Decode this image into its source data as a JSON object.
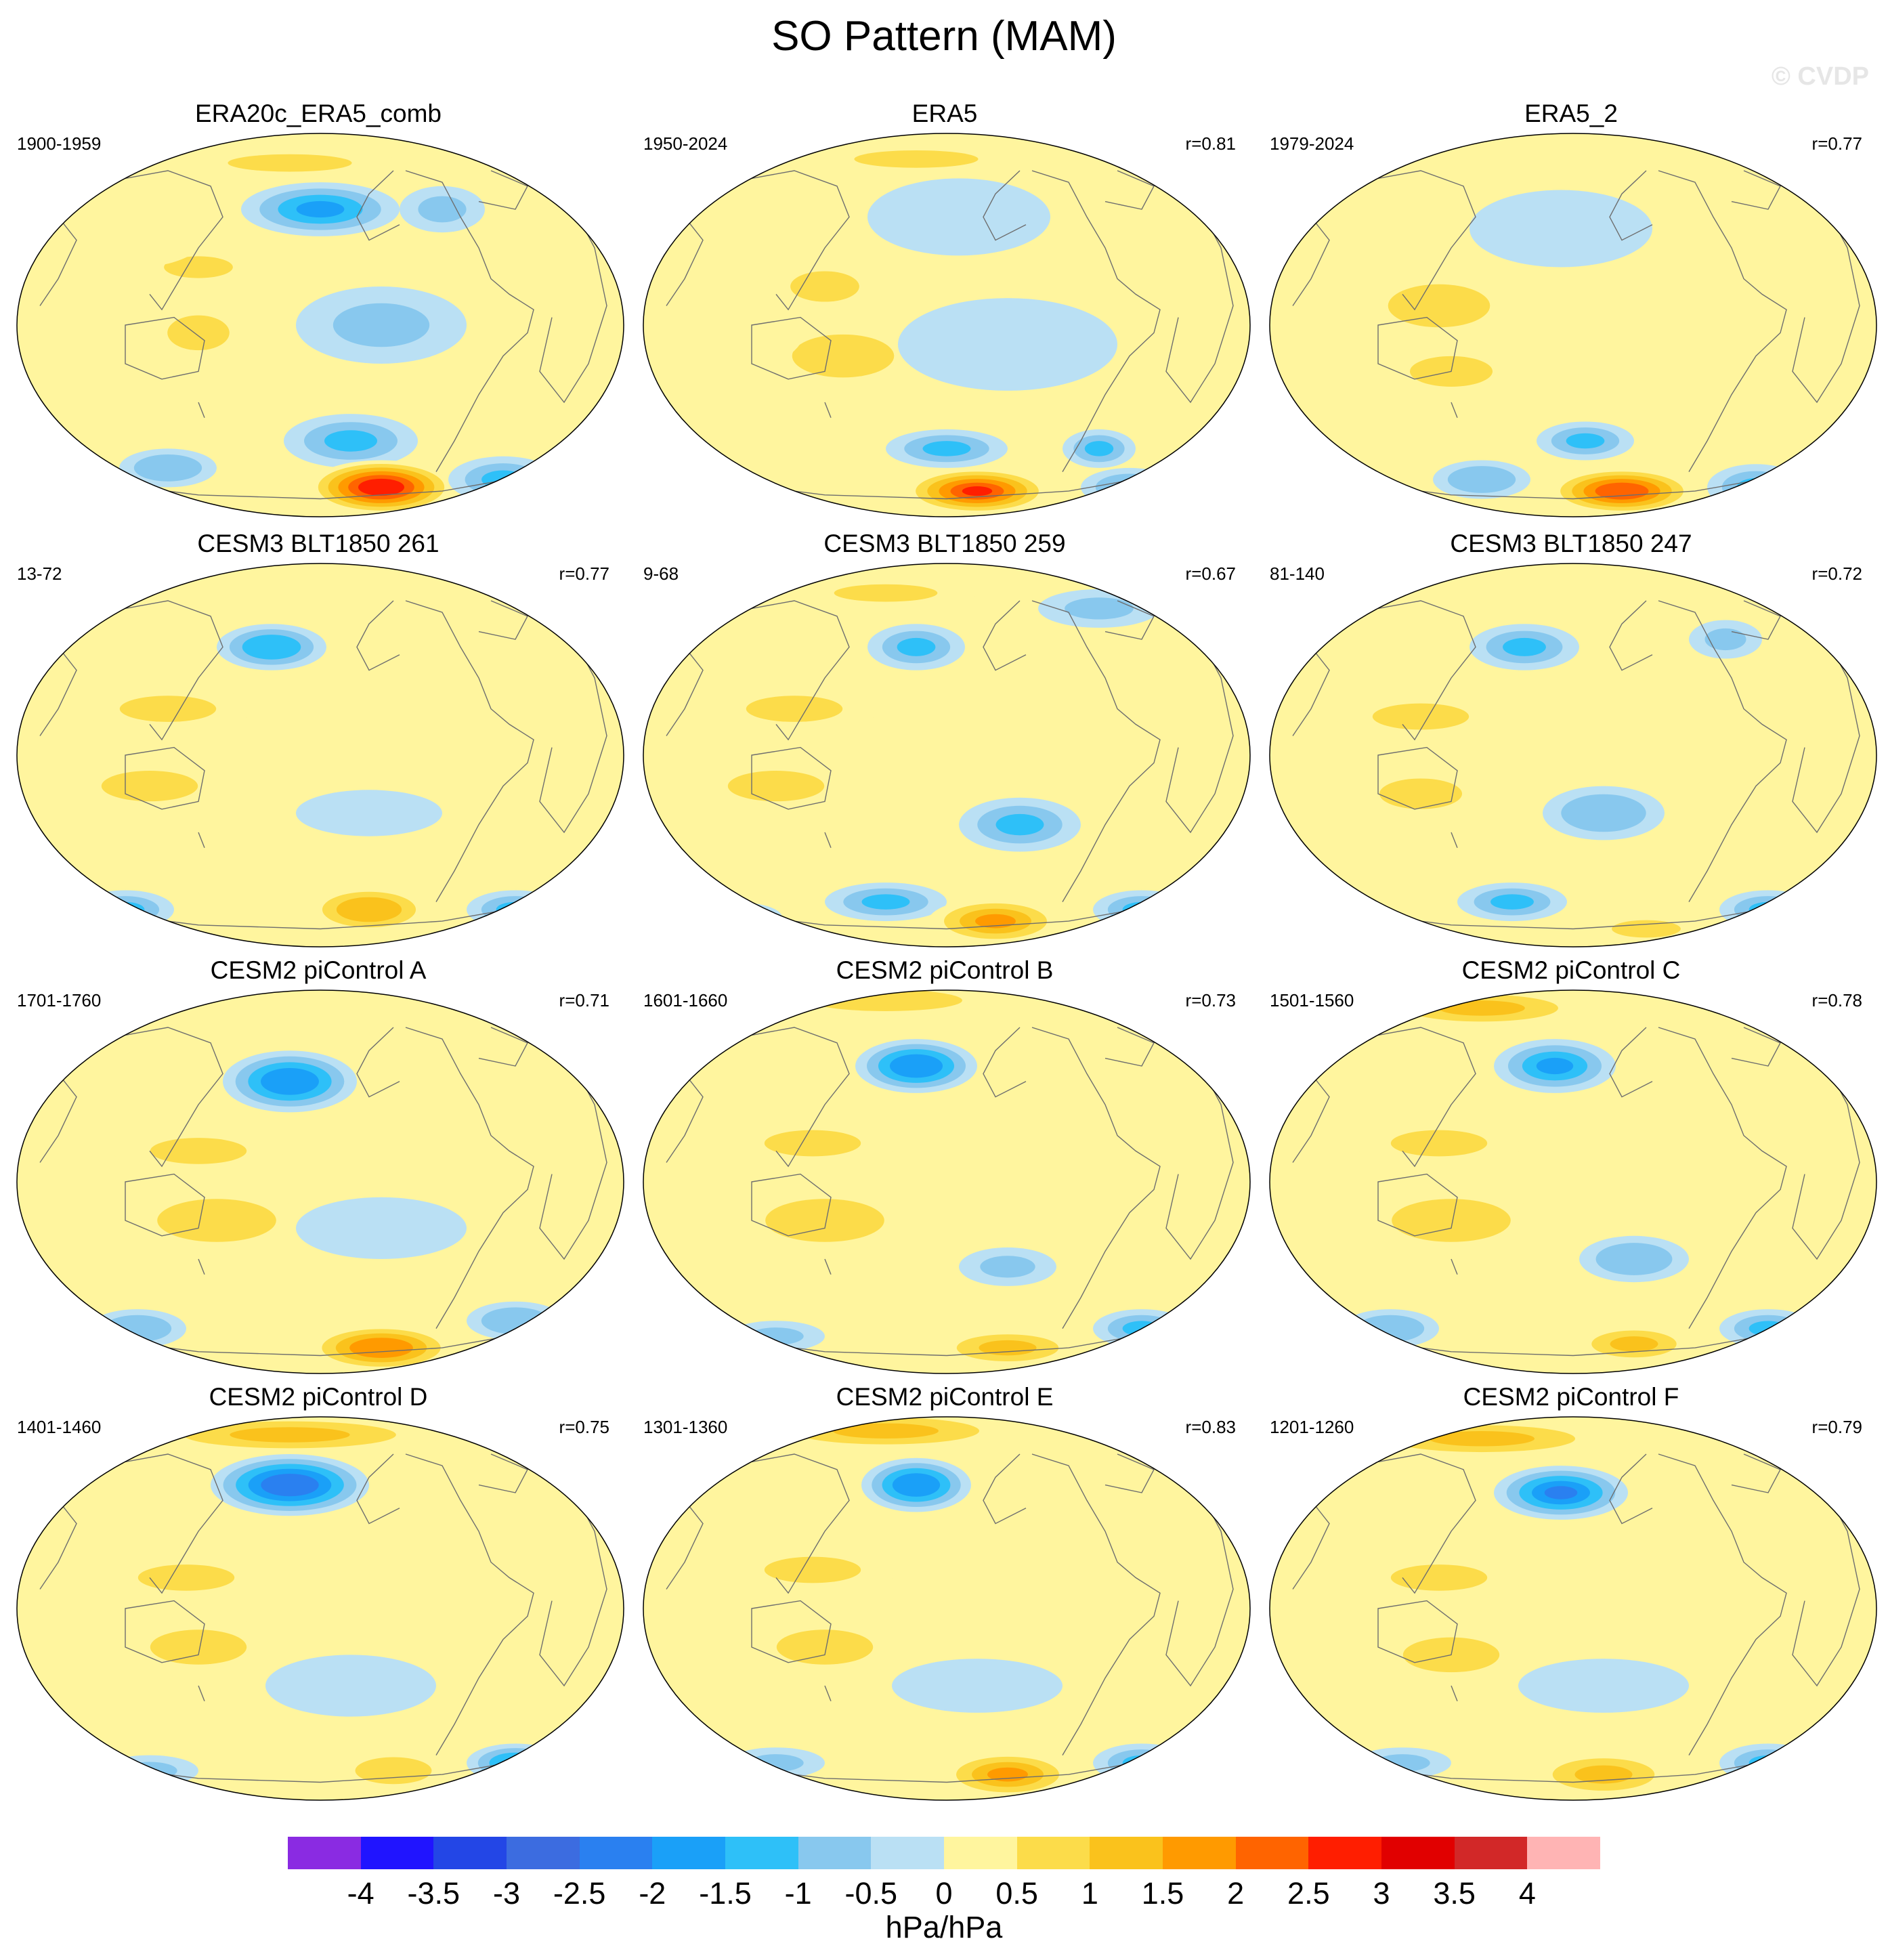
{
  "figure": {
    "title": "SO Pattern (MAM)",
    "watermark": "© CVDP",
    "units": "hPa/hPa"
  },
  "colorbar": {
    "colors": [
      "#8a2be2",
      "#2014ff",
      "#2346e6",
      "#3c6ce0",
      "#2a80f0",
      "#1aa0f8",
      "#2ec0f8",
      "#88c8ee",
      "#bae0f4",
      "#fff59e",
      "#fcdc4a",
      "#fac21c",
      "#ff9a00",
      "#ff6400",
      "#ff1e00",
      "#e10000",
      "#d22828",
      "#ffb4b4"
    ],
    "labels": [
      "-4",
      "-3.5",
      "-3",
      "-2.5",
      "-2",
      "-1.5",
      "-1",
      "-0.5",
      "0",
      "0.5",
      "1",
      "1.5",
      "2",
      "2.5",
      "3",
      "3.5",
      "4"
    ]
  },
  "panels": [
    {
      "title": "ERA20c_ERA5_comb",
      "period": "1900-1959",
      "r": "",
      "blobs": [
        [
          0.45,
          0.08,
          0.18,
          0.04,
          0.9
        ],
        [
          0.5,
          0.2,
          0.13,
          0.07,
          -1.8
        ],
        [
          0.7,
          0.2,
          0.07,
          0.06,
          -1.0
        ],
        [
          0.3,
          0.35,
          0.1,
          0.05,
          0.8
        ],
        [
          0.3,
          0.52,
          0.09,
          0.08,
          0.9
        ],
        [
          0.6,
          0.5,
          0.14,
          0.1,
          -0.8
        ],
        [
          0.55,
          0.8,
          0.11,
          0.07,
          -1.3
        ],
        [
          0.6,
          0.92,
          0.12,
          0.07,
          3.2
        ],
        [
          0.25,
          0.87,
          0.08,
          0.05,
          -1.1
        ],
        [
          0.8,
          0.9,
          0.09,
          0.06,
          -1.3
        ],
        [
          0.2,
          0.25,
          0.12,
          0.1,
          0.3
        ],
        [
          0.85,
          0.4,
          0.12,
          0.12,
          0.3
        ]
      ]
    },
    {
      "title": "ERA5",
      "period": "1950-2024",
      "r": "r=0.81",
      "blobs": [
        [
          0.45,
          0.07,
          0.18,
          0.04,
          0.8
        ],
        [
          0.52,
          0.22,
          0.15,
          0.1,
          -0.7
        ],
        [
          0.3,
          0.4,
          0.1,
          0.07,
          0.9
        ],
        [
          0.33,
          0.58,
          0.12,
          0.08,
          1.1
        ],
        [
          0.6,
          0.55,
          0.18,
          0.12,
          -0.6
        ],
        [
          0.5,
          0.82,
          0.1,
          0.05,
          -1.4
        ],
        [
          0.55,
          0.93,
          0.12,
          0.06,
          2.8
        ],
        [
          0.75,
          0.82,
          0.06,
          0.05,
          -1.5
        ],
        [
          0.8,
          0.92,
          0.08,
          0.05,
          -1.2
        ],
        [
          0.15,
          0.5,
          0.12,
          0.12,
          0.3
        ]
      ]
    },
    {
      "title": "ERA5_2",
      "period": "1979-2024",
      "r": "r=0.77",
      "blobs": [
        [
          0.5,
          0.1,
          0.2,
          0.05,
          0.6
        ],
        [
          0.48,
          0.25,
          0.15,
          0.1,
          -0.6
        ],
        [
          0.28,
          0.45,
          0.12,
          0.08,
          1.1
        ],
        [
          0.3,
          0.62,
          0.12,
          0.07,
          1.0
        ],
        [
          0.52,
          0.8,
          0.08,
          0.05,
          -1.5
        ],
        [
          0.58,
          0.93,
          0.12,
          0.06,
          2.6
        ],
        [
          0.8,
          0.92,
          0.08,
          0.06,
          -1.5
        ],
        [
          0.35,
          0.9,
          0.08,
          0.05,
          -1.2
        ],
        [
          0.15,
          0.3,
          0.1,
          0.08,
          0.4
        ]
      ]
    },
    {
      "title": "CESM3 BLT1850 261",
      "period": "13-72",
      "r": "r=0.77",
      "blobs": [
        [
          0.45,
          0.08,
          0.2,
          0.04,
          0.6
        ],
        [
          0.42,
          0.22,
          0.09,
          0.06,
          -1.6
        ],
        [
          0.25,
          0.38,
          0.14,
          0.06,
          0.8
        ],
        [
          0.22,
          0.58,
          0.14,
          0.07,
          1.0
        ],
        [
          0.58,
          0.65,
          0.12,
          0.06,
          -0.7
        ],
        [
          0.58,
          0.9,
          0.1,
          0.06,
          1.6
        ],
        [
          0.18,
          0.9,
          0.08,
          0.05,
          -1.4
        ],
        [
          0.82,
          0.9,
          0.08,
          0.05,
          -1.3
        ],
        [
          0.8,
          0.3,
          0.1,
          0.08,
          0.3
        ]
      ]
    },
    {
      "title": "CESM3 BLT1850 259",
      "period": "9-68",
      "r": "r=0.67",
      "blobs": [
        [
          0.4,
          0.08,
          0.15,
          0.04,
          0.9
        ],
        [
          0.45,
          0.22,
          0.08,
          0.06,
          -1.5
        ],
        [
          0.75,
          0.12,
          0.1,
          0.05,
          -0.9
        ],
        [
          0.25,
          0.38,
          0.14,
          0.06,
          0.9
        ],
        [
          0.22,
          0.58,
          0.14,
          0.07,
          1.0
        ],
        [
          0.62,
          0.68,
          0.1,
          0.07,
          -1.3
        ],
        [
          0.4,
          0.88,
          0.1,
          0.05,
          -1.4
        ],
        [
          0.58,
          0.93,
          0.11,
          0.06,
          2.0
        ],
        [
          0.82,
          0.9,
          0.08,
          0.05,
          -1.3
        ],
        [
          0.15,
          0.92,
          0.08,
          0.04,
          -1.0
        ]
      ]
    },
    {
      "title": "CESM3 BLT1850 247",
      "period": "81-140",
      "r": "r=0.72",
      "blobs": [
        [
          0.42,
          0.22,
          0.09,
          0.06,
          -1.4
        ],
        [
          0.75,
          0.2,
          0.06,
          0.05,
          -1.0
        ],
        [
          0.25,
          0.4,
          0.14,
          0.06,
          0.8
        ],
        [
          0.25,
          0.6,
          0.12,
          0.07,
          0.9
        ],
        [
          0.55,
          0.65,
          0.1,
          0.07,
          -1.1
        ],
        [
          0.4,
          0.88,
          0.09,
          0.05,
          -1.3
        ],
        [
          0.82,
          0.9,
          0.08,
          0.05,
          -1.4
        ],
        [
          0.62,
          0.95,
          0.1,
          0.04,
          0.8
        ]
      ]
    },
    {
      "title": "CESM2 piControl A",
      "period": "1701-1760",
      "r": "r=0.71",
      "blobs": [
        [
          0.4,
          0.08,
          0.18,
          0.04,
          0.6
        ],
        [
          0.45,
          0.24,
          0.11,
          0.08,
          -2.1
        ],
        [
          0.3,
          0.42,
          0.14,
          0.06,
          0.9
        ],
        [
          0.33,
          0.6,
          0.14,
          0.08,
          1.1
        ],
        [
          0.6,
          0.62,
          0.14,
          0.08,
          -0.7
        ],
        [
          0.6,
          0.93,
          0.12,
          0.06,
          2.1
        ],
        [
          0.2,
          0.88,
          0.08,
          0.05,
          -1.2
        ],
        [
          0.82,
          0.86,
          0.08,
          0.05,
          -1.2
        ]
      ]
    },
    {
      "title": "CESM2 piControl B",
      "period": "1601-1660",
      "r": "r=0.73",
      "blobs": [
        [
          0.4,
          0.03,
          0.18,
          0.04,
          1.1
        ],
        [
          0.45,
          0.2,
          0.1,
          0.07,
          -2.2
        ],
        [
          0.28,
          0.4,
          0.14,
          0.06,
          0.9
        ],
        [
          0.3,
          0.6,
          0.14,
          0.08,
          1.1
        ],
        [
          0.6,
          0.72,
          0.08,
          0.05,
          -1.0
        ],
        [
          0.6,
          0.93,
          0.12,
          0.05,
          1.4
        ],
        [
          0.82,
          0.88,
          0.08,
          0.05,
          -1.5
        ],
        [
          0.22,
          0.9,
          0.08,
          0.04,
          -0.8
        ]
      ]
    },
    {
      "title": "CESM2 piControl C",
      "period": "1501-1560",
      "r": "r=0.78",
      "blobs": [
        [
          0.35,
          0.05,
          0.18,
          0.05,
          1.3
        ],
        [
          0.47,
          0.2,
          0.1,
          0.07,
          -2.0
        ],
        [
          0.28,
          0.4,
          0.14,
          0.06,
          0.9
        ],
        [
          0.3,
          0.6,
          0.14,
          0.08,
          1.1
        ],
        [
          0.6,
          0.7,
          0.09,
          0.06,
          -1.1
        ],
        [
          0.6,
          0.92,
          0.1,
          0.05,
          1.4
        ],
        [
          0.2,
          0.88,
          0.08,
          0.05,
          -1.2
        ],
        [
          0.82,
          0.88,
          0.08,
          0.05,
          -1.4
        ]
      ]
    },
    {
      "title": "CESM2 piControl D",
      "period": "1401-1460",
      "r": "r=0.75",
      "blobs": [
        [
          0.45,
          0.05,
          0.25,
          0.05,
          1.3
        ],
        [
          0.45,
          0.18,
          0.13,
          0.08,
          -2.7
        ],
        [
          0.28,
          0.42,
          0.14,
          0.06,
          0.8
        ],
        [
          0.3,
          0.6,
          0.14,
          0.08,
          1.0
        ],
        [
          0.55,
          0.7,
          0.14,
          0.08,
          -0.7
        ],
        [
          0.62,
          0.92,
          0.09,
          0.05,
          1.2
        ],
        [
          0.82,
          0.9,
          0.08,
          0.05,
          -1.6
        ],
        [
          0.22,
          0.92,
          0.08,
          0.04,
          -0.8
        ]
      ]
    },
    {
      "title": "CESM2 piControl E",
      "period": "1301-1360",
      "r": "r=0.83",
      "blobs": [
        [
          0.4,
          0.04,
          0.22,
          0.05,
          1.4
        ],
        [
          0.45,
          0.18,
          0.09,
          0.07,
          -2.1
        ],
        [
          0.28,
          0.4,
          0.14,
          0.06,
          0.8
        ],
        [
          0.3,
          0.6,
          0.14,
          0.08,
          1.0
        ],
        [
          0.55,
          0.7,
          0.14,
          0.07,
          -0.7
        ],
        [
          0.6,
          0.93,
          0.11,
          0.06,
          1.9
        ],
        [
          0.82,
          0.9,
          0.08,
          0.05,
          -1.3
        ],
        [
          0.22,
          0.9,
          0.08,
          0.04,
          -0.8
        ]
      ]
    },
    {
      "title": "CESM2 piControl F",
      "period": "1201-1260",
      "r": "r=0.79",
      "blobs": [
        [
          0.35,
          0.06,
          0.22,
          0.05,
          1.4
        ],
        [
          0.48,
          0.2,
          0.11,
          0.07,
          -2.4
        ],
        [
          0.28,
          0.42,
          0.14,
          0.06,
          0.9
        ],
        [
          0.3,
          0.62,
          0.14,
          0.08,
          1.0
        ],
        [
          0.55,
          0.7,
          0.14,
          0.07,
          -0.7
        ],
        [
          0.55,
          0.93,
          0.12,
          0.06,
          1.5
        ],
        [
          0.82,
          0.9,
          0.08,
          0.05,
          -1.4
        ],
        [
          0.22,
          0.9,
          0.08,
          0.04,
          -0.8
        ]
      ]
    }
  ]
}
